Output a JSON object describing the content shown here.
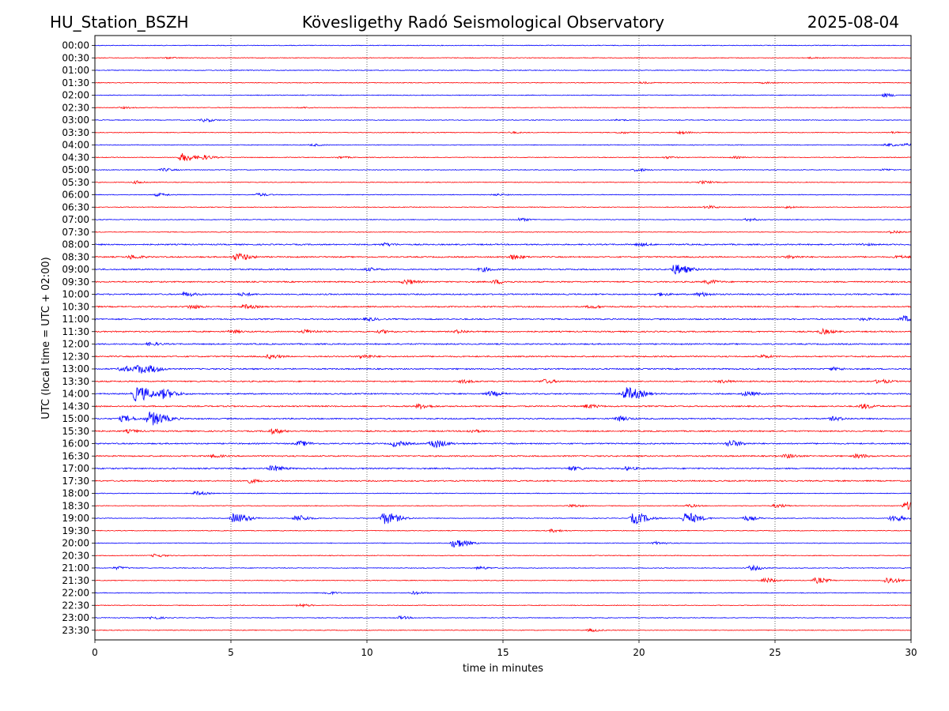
{
  "header": {
    "station": "HU_Station_BSZH",
    "observatory": "Kövesligethy Radó Seismological Observatory",
    "date": "2025-08-04"
  },
  "chart_data": {
    "type": "line",
    "title": "Kövesligethy Radó Seismological Observatory",
    "xlabel": "time in minutes",
    "ylabel": "UTC (local time = UTC + 02:00)",
    "xlim": [
      0,
      30
    ],
    "x_ticks": [
      "0",
      "5",
      "10",
      "15",
      "20",
      "25",
      "30"
    ],
    "x_grid": "dotted vertical lines at 5, 10, 15, 20, 25",
    "row_colors": [
      "#0000ff",
      "#ff0000"
    ],
    "rows": [
      {
        "label": "00:00",
        "events": []
      },
      {
        "label": "00:30",
        "events": [
          [
            2.7,
            0.15
          ],
          [
            26.3,
            0.12
          ]
        ]
      },
      {
        "label": "01:00",
        "events": []
      },
      {
        "label": "01:30",
        "events": [
          [
            20.1,
            0.15
          ],
          [
            24.6,
            0.15
          ]
        ]
      },
      {
        "label": "02:00",
        "events": [
          [
            29.0,
            0.35
          ]
        ]
      },
      {
        "label": "02:30",
        "events": [
          [
            1.0,
            0.15
          ],
          [
            7.6,
            0.12
          ]
        ]
      },
      {
        "label": "03:00",
        "events": [
          [
            4.0,
            0.35
          ],
          [
            19.2,
            0.15
          ]
        ]
      },
      {
        "label": "03:30",
        "events": [
          [
            15.3,
            0.15
          ],
          [
            19.3,
            0.2
          ],
          [
            21.5,
            0.25
          ],
          [
            29.3,
            0.15
          ]
        ]
      },
      {
        "label": "04:00",
        "events": [
          [
            8.0,
            0.2
          ],
          [
            29.1,
            0.3
          ],
          [
            29.8,
            0.25
          ]
        ]
      },
      {
        "label": "04:30",
        "events": [
          [
            3.2,
            0.9
          ],
          [
            4.0,
            0.4
          ],
          [
            9.0,
            0.2
          ],
          [
            21.0,
            0.2
          ],
          [
            23.5,
            0.2
          ]
        ]
      },
      {
        "label": "05:00",
        "events": [
          [
            2.5,
            0.3
          ],
          [
            19.9,
            0.3
          ],
          [
            29.0,
            0.2
          ]
        ]
      },
      {
        "label": "05:30",
        "events": [
          [
            1.5,
            0.3
          ],
          [
            22.3,
            0.3
          ]
        ]
      },
      {
        "label": "06:00",
        "events": [
          [
            2.3,
            0.3
          ],
          [
            6.0,
            0.3
          ],
          [
            14.7,
            0.2
          ]
        ]
      },
      {
        "label": "06:30",
        "events": [
          [
            22.5,
            0.3
          ],
          [
            25.4,
            0.2
          ]
        ]
      },
      {
        "label": "07:00",
        "events": [
          [
            15.6,
            0.3
          ],
          [
            24.0,
            0.3
          ]
        ]
      },
      {
        "label": "07:30",
        "events": [
          [
            29.3,
            0.3
          ]
        ]
      },
      {
        "label": "08:00",
        "events": [
          [
            10.6,
            0.3
          ],
          [
            20.0,
            0.3
          ],
          [
            28.2,
            0.2
          ]
        ]
      },
      {
        "label": "08:30",
        "events": [
          [
            1.3,
            0.4
          ],
          [
            5.2,
            0.8
          ],
          [
            15.3,
            0.5
          ],
          [
            25.5,
            0.3
          ],
          [
            29.5,
            0.25
          ]
        ]
      },
      {
        "label": "09:00",
        "events": [
          [
            14.2,
            0.4
          ],
          [
            21.3,
            1.1
          ],
          [
            10.0,
            0.3
          ]
        ]
      },
      {
        "label": "09:30",
        "events": [
          [
            11.4,
            0.5
          ],
          [
            14.7,
            0.4
          ],
          [
            22.5,
            0.4
          ]
        ]
      },
      {
        "label": "10:00",
        "events": [
          [
            3.3,
            0.4
          ],
          [
            5.4,
            0.3
          ],
          [
            20.7,
            0.3
          ],
          [
            22.2,
            0.4
          ]
        ]
      },
      {
        "label": "10:30",
        "events": [
          [
            3.5,
            0.4
          ],
          [
            5.5,
            0.4
          ],
          [
            18.2,
            0.3
          ]
        ]
      },
      {
        "label": "11:00",
        "events": [
          [
            10.0,
            0.3
          ],
          [
            29.7,
            0.6
          ],
          [
            28.2,
            0.2
          ]
        ]
      },
      {
        "label": "11:30",
        "events": [
          [
            5.0,
            0.3
          ],
          [
            7.7,
            0.4
          ],
          [
            10.5,
            0.3
          ],
          [
            13.3,
            0.3
          ],
          [
            26.7,
            0.5
          ]
        ]
      },
      {
        "label": "12:00",
        "events": [
          [
            2.0,
            0.3
          ]
        ]
      },
      {
        "label": "12:30",
        "events": [
          [
            6.4,
            0.4
          ],
          [
            9.8,
            0.4
          ],
          [
            24.5,
            0.3
          ]
        ]
      },
      {
        "label": "13:00",
        "events": [
          [
            1.0,
            0.6
          ],
          [
            1.6,
            0.9
          ],
          [
            2.1,
            0.4
          ],
          [
            27.1,
            0.3
          ]
        ]
      },
      {
        "label": "13:30",
        "events": [
          [
            13.5,
            0.3
          ],
          [
            16.5,
            0.4
          ],
          [
            23.0,
            0.3
          ],
          [
            28.8,
            0.4
          ]
        ]
      },
      {
        "label": "14:00",
        "events": [
          [
            1.5,
            1.6
          ],
          [
            2.5,
            0.9
          ],
          [
            14.5,
            0.5
          ],
          [
            19.5,
            1.4
          ],
          [
            23.9,
            0.5
          ]
        ]
      },
      {
        "label": "14:30",
        "events": [
          [
            11.9,
            0.5
          ],
          [
            18.1,
            0.4
          ],
          [
            28.2,
            0.5
          ]
        ]
      },
      {
        "label": "15:00",
        "events": [
          [
            1.0,
            0.6
          ],
          [
            2.0,
            1.5
          ],
          [
            19.2,
            0.5
          ],
          [
            27.1,
            0.4
          ]
        ]
      },
      {
        "label": "15:30",
        "events": [
          [
            6.5,
            0.5
          ],
          [
            1.2,
            0.3
          ],
          [
            13.8,
            0.3
          ]
        ]
      },
      {
        "label": "16:00",
        "events": [
          [
            12.4,
            0.9
          ],
          [
            11.0,
            0.6
          ],
          [
            7.5,
            0.5
          ],
          [
            23.3,
            0.7
          ]
        ]
      },
      {
        "label": "16:30",
        "events": [
          [
            4.3,
            0.3
          ],
          [
            25.4,
            0.4
          ],
          [
            28.0,
            0.4
          ]
        ]
      },
      {
        "label": "17:00",
        "events": [
          [
            6.5,
            0.6
          ],
          [
            17.5,
            0.4
          ],
          [
            19.5,
            0.3
          ]
        ]
      },
      {
        "label": "17:30",
        "events": [
          [
            5.6,
            0.4
          ]
        ]
      },
      {
        "label": "18:00",
        "events": [
          [
            3.7,
            0.4
          ]
        ]
      },
      {
        "label": "18:30",
        "events": [
          [
            17.5,
            0.3
          ],
          [
            21.8,
            0.3
          ],
          [
            25.0,
            0.4
          ],
          [
            29.8,
            0.9
          ]
        ]
      },
      {
        "label": "19:00",
        "events": [
          [
            5.1,
            1.1
          ],
          [
            7.4,
            0.7
          ],
          [
            10.6,
            1.3
          ],
          [
            19.8,
            1.2
          ],
          [
            21.7,
            1.2
          ],
          [
            23.9,
            0.5
          ],
          [
            29.3,
            0.7
          ]
        ]
      },
      {
        "label": "19:30",
        "events": [
          [
            16.8,
            0.3
          ]
        ]
      },
      {
        "label": "20:00",
        "events": [
          [
            13.2,
            1.0
          ],
          [
            20.6,
            0.3
          ]
        ]
      },
      {
        "label": "20:30",
        "events": [
          [
            2.2,
            0.3
          ]
        ]
      },
      {
        "label": "21:00",
        "events": [
          [
            0.8,
            0.3
          ],
          [
            14.1,
            0.3
          ],
          [
            24.1,
            0.5
          ]
        ]
      },
      {
        "label": "21:30",
        "events": [
          [
            24.6,
            0.5
          ],
          [
            26.5,
            0.6
          ],
          [
            29.1,
            0.7
          ]
        ]
      },
      {
        "label": "22:00",
        "events": [
          [
            8.5,
            0.3
          ],
          [
            11.7,
            0.3
          ]
        ]
      },
      {
        "label": "22:30",
        "events": [
          [
            7.5,
            0.3
          ]
        ]
      },
      {
        "label": "23:00",
        "events": [
          [
            2.1,
            0.3
          ],
          [
            11.2,
            0.3
          ]
        ]
      },
      {
        "label": "23:30",
        "events": [
          [
            18.2,
            0.3
          ]
        ]
      }
    ]
  }
}
